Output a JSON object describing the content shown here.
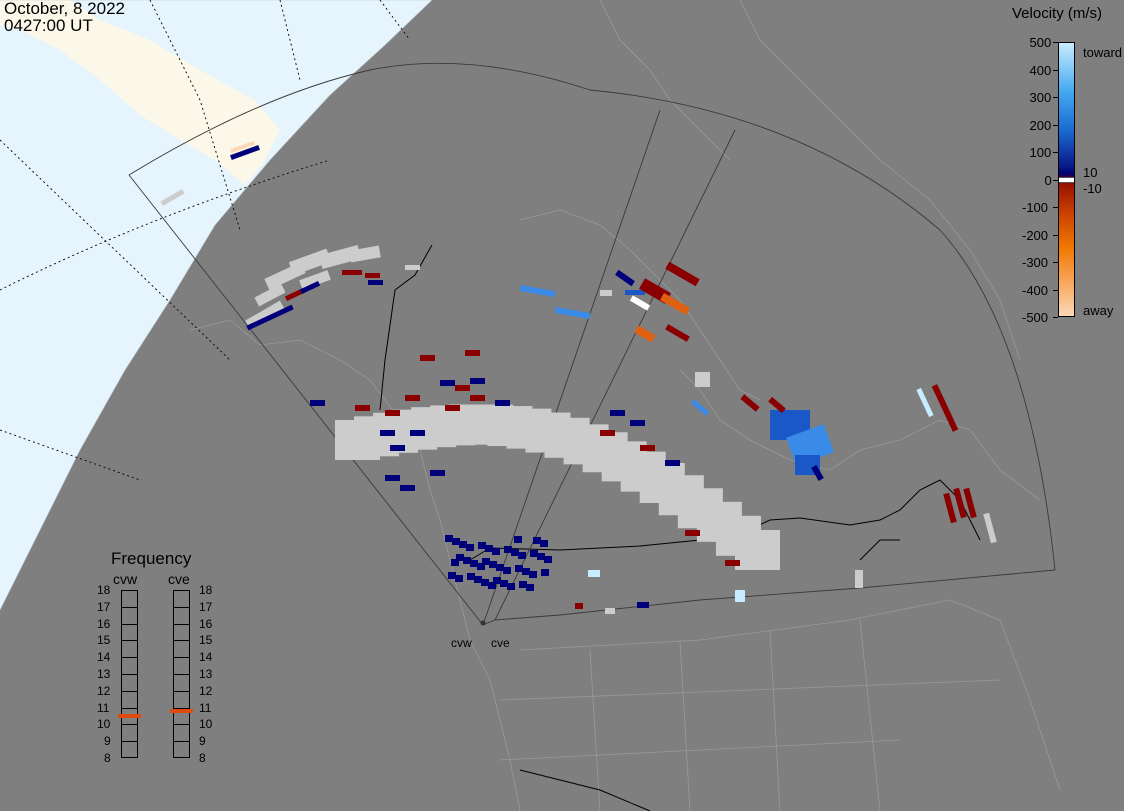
{
  "header": {
    "date": "October, 8 2022",
    "time": "0427:00 UT"
  },
  "colorbar": {
    "title": "Velocity (m/s)",
    "ticks": [
      "500",
      "400",
      "300",
      "200",
      "100",
      "0",
      "-100",
      "-200",
      "-300",
      "-400",
      "-500"
    ],
    "toward_label": "toward",
    "away_label": "away",
    "pos_threshold": "10",
    "neg_threshold": "-10",
    "gradient_colors": [
      "#c8ecff",
      "#44a8f0",
      "#1a6ad0",
      "#0a1a8a",
      "#00006e",
      "#7a0000",
      "#9a1400",
      "#c84000",
      "#f07800",
      "#f8a860",
      "#fcd8b8"
    ],
    "ground_scatter_color": "#cccccc"
  },
  "frequency": {
    "title": "Frequency",
    "radars": [
      {
        "name": "cvw",
        "freq_mhz": 10.5
      },
      {
        "name": "cve",
        "freq_mhz": 10.8
      }
    ],
    "scale": [
      "18",
      "17",
      "16",
      "15",
      "14",
      "13",
      "12",
      "11",
      "10",
      "9",
      "8"
    ],
    "marker_color": "#e04a10"
  },
  "radar_sites": [
    "cvw",
    "cve"
  ],
  "map": {
    "land_color": "#7f7f7f",
    "sunlit_sky_color": "#e6f4fd",
    "sunlit_land_color": "#fbf8e9",
    "coast_color": "#999999",
    "border_color": "#000000"
  }
}
